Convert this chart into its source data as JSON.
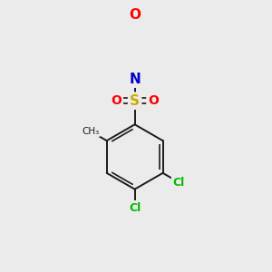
{
  "background_color": "#ebebeb",
  "bond_color": "#1a1a1a",
  "atom_colors": {
    "O": "#ff0000",
    "N": "#0000cc",
    "S": "#ccaa00",
    "Cl": "#00bb00",
    "C": "#1a1a1a",
    "CH3": "#1a1a1a"
  },
  "figsize": [
    3.0,
    3.0
  ],
  "dpi": 100,
  "lw": 1.4
}
